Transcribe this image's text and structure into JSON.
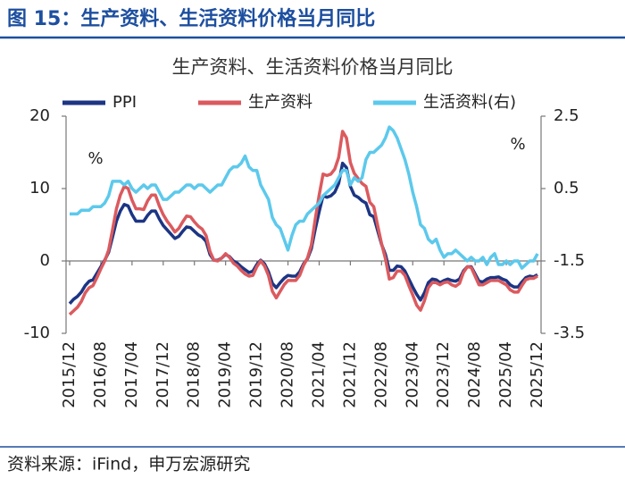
{
  "header": "图 15：生产资料、生活资料价格当月同比",
  "source": "资料来源：iFind，申万宏源研究",
  "chart_data": {
    "type": "line",
    "title": "生产资料、生活资料价格当月同比",
    "y_unit": "%",
    "y2_unit": "%",
    "legend": "top",
    "categories": [
      "2015/12",
      null,
      null,
      null,
      null,
      null,
      null,
      null,
      "2016/08",
      null,
      null,
      null,
      null,
      null,
      null,
      null,
      "2017/04",
      null,
      null,
      null,
      null,
      null,
      null,
      null,
      "2017/12",
      null,
      null,
      null,
      null,
      null,
      null,
      null,
      "2018/08",
      null,
      null,
      null,
      null,
      null,
      null,
      null,
      "2019/04",
      null,
      null,
      null,
      null,
      null,
      null,
      null,
      "2019/12",
      null,
      null,
      null,
      null,
      null,
      null,
      null,
      "2020/08",
      null,
      null,
      null,
      null,
      null,
      null,
      null,
      "2021/04",
      null,
      null,
      null,
      null,
      null,
      null,
      null,
      "2021/12",
      null,
      null,
      null,
      null,
      null,
      null,
      null,
      "2022/08",
      null,
      null,
      null,
      null,
      null,
      null,
      null,
      "2023/04",
      null,
      null,
      null,
      null,
      null,
      null,
      null,
      "2023/12",
      null,
      null,
      null,
      null,
      null,
      null,
      null,
      "2024/08",
      null,
      null,
      null,
      null,
      null,
      null,
      null,
      "2025/04",
      null,
      null,
      null,
      null,
      null,
      null,
      null,
      "2025/12"
    ],
    "ylim": [
      -10,
      20
    ],
    "yticks": [
      -10,
      0,
      10,
      20
    ],
    "y2lim": [
      -3.5,
      2.5
    ],
    "y2ticks": [
      -3.5,
      -1.5,
      0.5,
      2.5
    ],
    "series": [
      {
        "name": "PPI",
        "color": "#1c3584",
        "values": [
          -5.9,
          -5.3,
          -4.9,
          -4.3,
          -3.4,
          -2.8,
          -2.6,
          -1.7,
          -0.8,
          0.1,
          1.2,
          3.3,
          5.5,
          6.9,
          7.8,
          7.6,
          6.4,
          5.5,
          5.5,
          5.5,
          6.3,
          6.9,
          6.9,
          5.8,
          4.9,
          4.3,
          3.7,
          3.1,
          3.4,
          4.1,
          4.7,
          4.6,
          4.1,
          3.6,
          3.3,
          2.7,
          0.9,
          0.1,
          0.1,
          0.4,
          0.9,
          0.6,
          0.0,
          -0.3,
          -0.8,
          -1.2,
          -1.6,
          -1.4,
          -0.5,
          0.1,
          -0.4,
          -1.5,
          -3.1,
          -3.7,
          -3.0,
          -2.4,
          -2.0,
          -2.1,
          -2.1,
          -1.5,
          -0.4,
          0.3,
          1.7,
          4.4,
          6.8,
          9.0,
          8.8,
          9.0,
          9.5,
          10.7,
          13.5,
          12.9,
          10.3,
          9.1,
          8.8,
          8.3,
          8.0,
          6.4,
          6.1,
          4.2,
          2.3,
          0.9,
          -1.3,
          -1.3,
          -0.7,
          -0.8,
          -1.4,
          -2.5,
          -3.6,
          -4.6,
          -5.4,
          -4.4,
          -3.0,
          -2.5,
          -2.6,
          -3.0,
          -2.7,
          -2.5,
          -2.7,
          -2.8,
          -2.5,
          -1.4,
          -0.8,
          -0.8,
          -1.8,
          -2.8,
          -2.9,
          -2.5,
          -2.3,
          -2.3,
          -2.2,
          -2.5,
          -2.7,
          -3.3,
          -3.6,
          -3.6,
          -2.9,
          -2.3,
          -2.1,
          -2.2,
          -1.9
        ]
      },
      {
        "name": "生产资料",
        "color": "#db5a5e",
        "values": [
          -7.4,
          -6.9,
          -6.4,
          -5.6,
          -4.4,
          -3.7,
          -3.4,
          -2.3,
          -1.1,
          0.0,
          1.5,
          4.3,
          7.2,
          9.1,
          10.3,
          10.0,
          8.4,
          7.2,
          7.2,
          7.1,
          8.3,
          9.1,
          9.1,
          7.6,
          6.4,
          5.5,
          4.8,
          4.0,
          4.5,
          5.4,
          6.2,
          6.1,
          5.4,
          4.8,
          4.4,
          3.5,
          1.3,
          0.1,
          0.0,
          0.4,
          1.0,
          0.5,
          -0.3,
          -0.7,
          -1.3,
          -1.8,
          -2.1,
          -2.0,
          -0.8,
          0.0,
          -0.7,
          -2.0,
          -4.2,
          -5.1,
          -4.2,
          -3.3,
          -2.7,
          -2.7,
          -2.7,
          -2.0,
          -0.6,
          0.4,
          2.2,
          5.8,
          9.1,
          12.0,
          11.8,
          12.0,
          12.7,
          14.3,
          17.9,
          17.0,
          13.6,
          12.1,
          11.4,
          10.7,
          10.3,
          8.1,
          7.5,
          4.9,
          2.4,
          0.3,
          -2.5,
          -2.3,
          -1.4,
          -1.4,
          -2.0,
          -3.4,
          -4.7,
          -6.1,
          -6.8,
          -5.5,
          -3.7,
          -3.0,
          -3.0,
          -3.3,
          -3.0,
          -2.9,
          -3.3,
          -3.5,
          -3.1,
          -1.6,
          -0.8,
          -0.9,
          -2.1,
          -3.3,
          -3.3,
          -3.0,
          -2.7,
          -2.7,
          -2.7,
          -3.0,
          -3.3,
          -4.0,
          -4.3,
          -4.3,
          -3.4,
          -2.6,
          -2.4,
          -2.4,
          -2.1
        ]
      },
      {
        "name": "生活资料(右)",
        "color": "#5cc9ec",
        "axis": "y2",
        "values": [
          -0.2,
          -0.2,
          -0.2,
          -0.1,
          -0.1,
          -0.1,
          0.0,
          0.0,
          0.0,
          0.1,
          0.3,
          0.7,
          0.7,
          0.7,
          0.6,
          0.7,
          0.5,
          0.4,
          0.5,
          0.6,
          0.5,
          0.6,
          0.6,
          0.4,
          0.2,
          0.2,
          0.3,
          0.4,
          0.4,
          0.5,
          0.6,
          0.6,
          0.5,
          0.6,
          0.6,
          0.5,
          0.4,
          0.5,
          0.6,
          0.6,
          0.8,
          1.0,
          1.1,
          1.1,
          1.2,
          1.4,
          1.1,
          1.0,
          1.0,
          0.6,
          0.4,
          0.2,
          -0.3,
          -0.5,
          -0.6,
          -0.9,
          -1.2,
          -0.8,
          -0.5,
          -0.4,
          -0.4,
          -0.2,
          -0.1,
          0.0,
          0.1,
          0.3,
          0.4,
          0.5,
          0.6,
          0.8,
          1.0,
          1.0,
          0.6,
          0.8,
          0.7,
          0.8,
          1.3,
          1.5,
          1.5,
          1.6,
          1.7,
          1.9,
          2.2,
          2.1,
          1.9,
          1.6,
          1.3,
          0.9,
          0.4,
          0.0,
          -0.5,
          -0.6,
          -0.9,
          -1.0,
          -0.9,
          -1.2,
          -1.4,
          -1.3,
          -1.3,
          -1.2,
          -1.3,
          -1.4,
          -1.5,
          -1.4,
          -1.5,
          -1.5,
          -1.4,
          -1.6,
          -1.4,
          -1.3,
          -1.6,
          -1.6,
          -1.5,
          -1.6,
          -1.5,
          -1.5,
          -1.7,
          -1.6,
          -1.5,
          -1.5,
          -1.3
        ]
      }
    ]
  }
}
